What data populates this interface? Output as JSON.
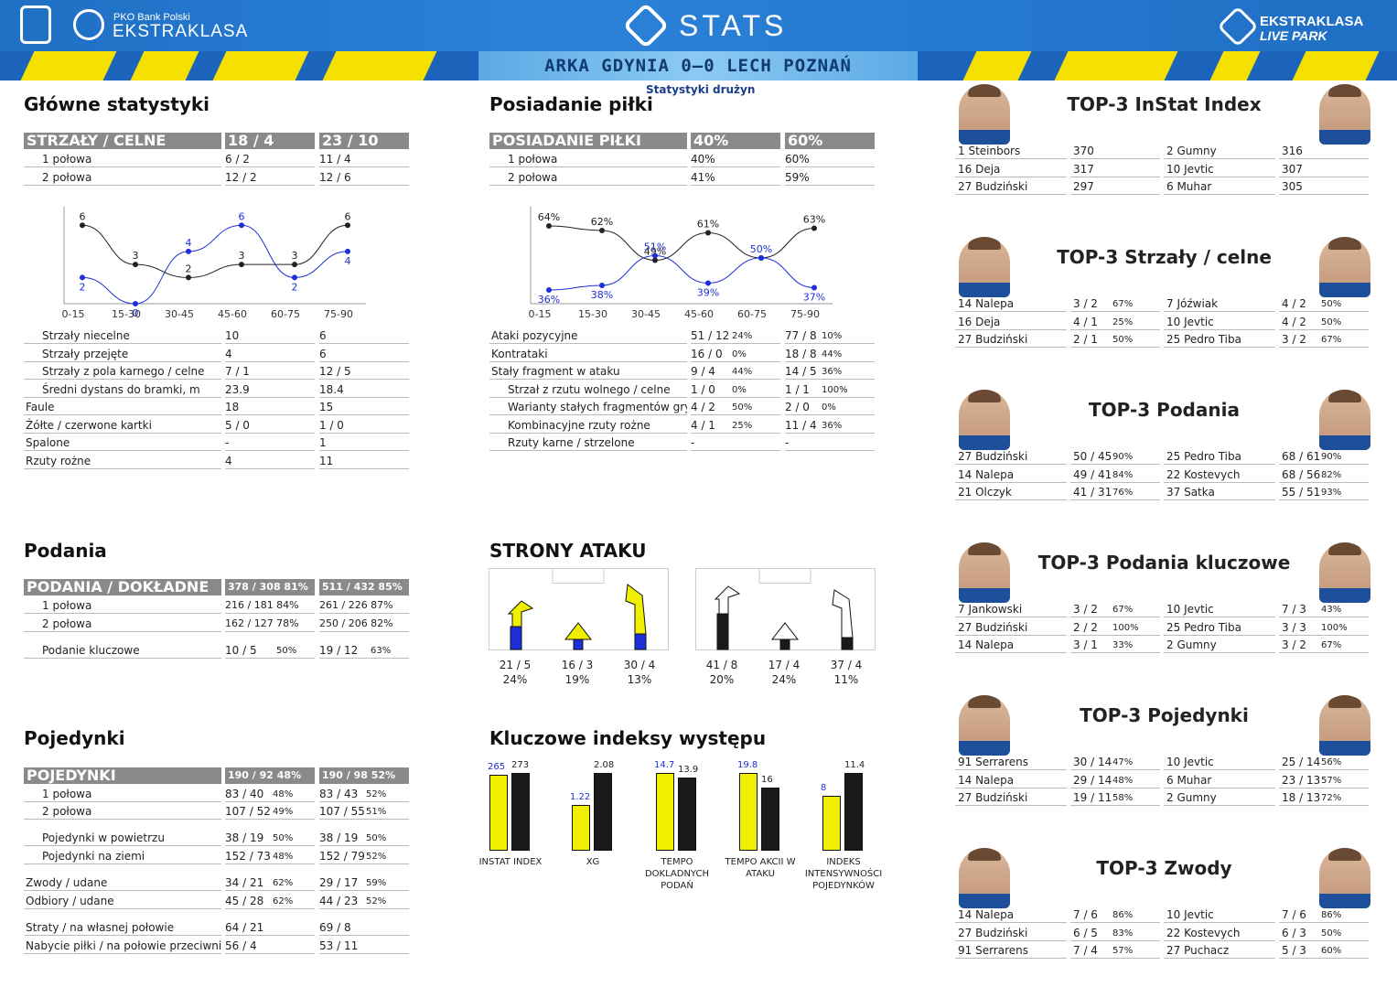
{
  "header": {
    "pko": "PKO Bank Polski",
    "ekstraklasa": "EKSTRAKLASA",
    "stats": "STATS",
    "livepark1": "EKSTRAKLASA",
    "livepark2": "LIVE PARK",
    "match": "ARKA GDYNIA 0–0  LECH POZNAŃ",
    "subtitle": "Statystyki drużyn"
  },
  "colors": {
    "yellow": "#f0ef00",
    "blue": "#1d2fd6",
    "black": "#1a1a1a",
    "header": "#1f6fc4"
  },
  "main": {
    "title": "Główne statystyki",
    "head": [
      "STRZAŁY / CELNE",
      "18 / 4",
      "23 / 10"
    ],
    "rows1": [
      [
        "1 połowa",
        "6 / 2",
        "11 / 4"
      ],
      [
        "2 połowa",
        "12 / 2",
        "12 / 6"
      ]
    ],
    "rows2": [
      [
        "Strzały niecelne",
        "10",
        "6"
      ],
      [
        "Strzały przejęte",
        "4",
        "6"
      ],
      [
        "Strzały z pola karnego / celne",
        "7 / 1",
        "12 / 5"
      ],
      [
        "Średni dystans do bramki, m",
        "23.9",
        "18.4"
      ],
      [
        "Faule",
        "18",
        "15"
      ],
      [
        "Żółte / czerwone kartki",
        "5 / 0",
        "1 / 0"
      ],
      [
        "Spalone",
        "-",
        "1"
      ],
      [
        "Rzuty rożne",
        "4",
        "11"
      ]
    ]
  },
  "chart_shots": {
    "type": "line",
    "categories": [
      "0-15",
      "15-30",
      "30-45",
      "45-60",
      "60-75",
      "75-90"
    ],
    "series": [
      {
        "values": [
          6,
          3,
          2,
          3,
          3,
          6
        ]
      },
      {
        "values": [
          2,
          0,
          4,
          6,
          2,
          4
        ]
      }
    ],
    "ylim": [
      0,
      7
    ]
  },
  "chart_shots_labels": {
    "s1": [
      "6",
      "3",
      "2",
      "3",
      "3",
      "6"
    ],
    "s2": [
      "2",
      "0",
      "4",
      "6",
      "2",
      "4"
    ]
  },
  "possession": {
    "title": "Posiadanie piłki",
    "head": [
      "POSIADANIE PIŁKI",
      "40%",
      "60%"
    ],
    "rows1": [
      [
        "1 połowa",
        "40%",
        "60%"
      ],
      [
        "2 połowa",
        "41%",
        "59%"
      ]
    ],
    "rows2": [
      [
        "Ataki pozycyjne",
        "51 / 12",
        "24%",
        "77 / 8",
        "10%"
      ],
      [
        "Kontrataki",
        "16 / 0",
        "0%",
        "18 / 8",
        "44%"
      ],
      [
        "Stały fragment w ataku",
        "9 / 4",
        "44%",
        "14 / 5",
        "36%"
      ],
      [
        "Strzał z rzutu wolnego / celne",
        "1 / 0",
        "0%",
        "1 / 1",
        "100%"
      ],
      [
        "Warianty stałych fragmentów gry",
        "4 / 2",
        "50%",
        "2 / 0",
        "0%"
      ],
      [
        "Kombinacyjne rzuty rożne",
        "4 / 1",
        "25%",
        "11 / 4",
        "36%"
      ],
      [
        "Rzuty karne /  strzelone",
        "-",
        "",
        "-",
        ""
      ]
    ]
  },
  "chart_poss": {
    "type": "line",
    "categories": [
      "0-15",
      "15-30",
      "30-45",
      "45-60",
      "60-75",
      "75-90"
    ],
    "series": [
      {
        "values": [
          64,
          62,
          49,
          61,
          50,
          63
        ]
      },
      {
        "values": [
          36,
          38,
          51,
          39,
          50,
          37
        ]
      }
    ],
    "ylim": [
      30,
      70
    ]
  },
  "chart_poss_labels": {
    "s1": [
      "64%",
      "62%",
      "49%",
      "61%",
      "",
      "63%"
    ],
    "s2": [
      "36%",
      "38%",
      "51%",
      "39%",
      "50%",
      "37%"
    ]
  },
  "passes": {
    "title": "Podania",
    "head": [
      "PODANIA / DOKŁADNE",
      "378 / 308 81%",
      "511 / 432 85%"
    ],
    "rows": [
      [
        "1 połowa",
        "216 / 181 84%",
        "261 / 226 87%"
      ],
      [
        "2 połowa",
        "162 / 127 78%",
        "250 / 206 82%"
      ]
    ],
    "key": [
      "Podanie kluczowe",
      "10 / 5",
      "50%",
      "19 / 12",
      "63%"
    ]
  },
  "attack": {
    "title": "STRONY ATAKU",
    "left": [
      [
        "21 / 5",
        "24%"
      ],
      [
        "16 / 3",
        "19%"
      ],
      [
        "30 / 4",
        "13%"
      ]
    ],
    "right": [
      [
        "41 / 8",
        "20%"
      ],
      [
        "17 / 4",
        "24%"
      ],
      [
        "37 / 4",
        "11%"
      ]
    ]
  },
  "duels": {
    "title": "Pojedynki",
    "head": [
      "POJEDYNKI",
      "190 / 92 48%",
      "190 / 98 52%"
    ],
    "rows": [
      [
        "1 połowa",
        "83 / 40",
        "48%",
        "83 / 43",
        "52%"
      ],
      [
        "2 połowa",
        "107 / 52",
        "49%",
        "107 / 55",
        "51%"
      ],
      [
        "Pojedynki w powietrzu",
        "38 / 19",
        "50%",
        "38 / 19",
        "50%"
      ],
      [
        "Pojedynki na ziemi",
        "152 / 73",
        "48%",
        "152 / 79",
        "52%"
      ],
      [
        "Zwody / udane",
        "34 / 21",
        "62%",
        "29 / 17",
        "59%"
      ],
      [
        "Odbiory / udane",
        "45 / 28",
        "62%",
        "44 / 23",
        "52%"
      ],
      [
        "Straty / na własnej połowie",
        "64 / 21",
        "",
        "69 / 8",
        ""
      ],
      [
        "Nabycie piłki / na połowie przeciwnika",
        "56 / 4",
        "",
        "53 / 11",
        ""
      ]
    ]
  },
  "kpi": {
    "title": "Kluczowe indeksy występu",
    "chart_data": {
      "type": "bar",
      "categories": [
        "INSTAT INDEX",
        "XG",
        "TEMPO DOKLADNYCH PODAŃ",
        "TEMPO AKCII W ATAKU",
        "INDEKS INTENSYWNOŚCI POJEDYNKÓW"
      ],
      "series": [
        {
          "values": [
            265,
            1.22,
            14.7,
            19.8,
            8
          ]
        },
        {
          "values": [
            273,
            2.08,
            13.9,
            16,
            11.4
          ]
        }
      ]
    },
    "labels": [
      "INSTAT INDEX",
      "XG",
      "TEMPO DOKLADNYCH PODAŃ",
      "TEMPO AKCII W ATAKU",
      "INDEKS INTENSYWNOŚCI POJEDYNKÓW"
    ],
    "a": [
      "265",
      "1.22",
      "14.7",
      "19.8",
      "8"
    ],
    "b": [
      "273",
      "2.08",
      "13.9",
      "16",
      "11.4"
    ]
  },
  "top": [
    {
      "title": "TOP-3 InStat Index",
      "l": [
        [
          "1  Steinbors",
          "370",
          ""
        ],
        [
          "16 Deja",
          "317",
          ""
        ],
        [
          "27 Budziński",
          "297",
          ""
        ]
      ],
      "r": [
        [
          "2  Gumny",
          "316",
          ""
        ],
        [
          "10 Jevtic",
          "307",
          ""
        ],
        [
          "6  Muhar",
          "305",
          ""
        ]
      ]
    },
    {
      "title": "TOP-3 Strzały / celne",
      "l": [
        [
          "14 Nalepa",
          "3 / 2",
          "67%"
        ],
        [
          "16 Deja",
          "4 / 1",
          "25%"
        ],
        [
          "27 Budziński",
          "2 / 1",
          "50%"
        ]
      ],
      "r": [
        [
          "7  Jóźwiak",
          "4 / 2",
          "50%"
        ],
        [
          "10 Jevtic",
          "4 / 2",
          "50%"
        ],
        [
          "25 Pedro Tiba",
          "3 / 2",
          "67%"
        ]
      ]
    },
    {
      "title": "TOP-3 Podania",
      "l": [
        [
          "27 Budziński",
          "50 / 45",
          "90%"
        ],
        [
          "14 Nalepa",
          "49 / 41",
          "84%"
        ],
        [
          "21 Olczyk",
          "41 / 31",
          "76%"
        ]
      ],
      "r": [
        [
          "25 Pedro Tiba",
          "68 / 61",
          "90%"
        ],
        [
          "22 Kostevych",
          "68 / 56",
          "82%"
        ],
        [
          "37 Satka",
          "55 / 51",
          "93%"
        ]
      ]
    },
    {
      "title": "TOP-3 Podania kluczowe",
      "l": [
        [
          "7  Jankowski",
          "3 / 2",
          "67%"
        ],
        [
          "27 Budziński",
          "2 / 2",
          "100%"
        ],
        [
          "14 Nalepa",
          "3 / 1",
          "33%"
        ]
      ],
      "r": [
        [
          "10 Jevtic",
          "7 / 3",
          "43%"
        ],
        [
          "25 Pedro Tiba",
          "3 / 3",
          "100%"
        ],
        [
          "2  Gumny",
          "3 / 2",
          "67%"
        ]
      ]
    },
    {
      "title": "TOP-3 Pojedynki",
      "l": [
        [
          "91 Serrarens",
          "30 / 14",
          "47%"
        ],
        [
          "14 Nalepa",
          "29 / 14",
          "48%"
        ],
        [
          "27 Budziński",
          "19 / 11",
          "58%"
        ]
      ],
      "r": [
        [
          "10 Jevtic",
          "25 / 14",
          "56%"
        ],
        [
          "6  Muhar",
          "23 / 13",
          "57%"
        ],
        [
          "2  Gumny",
          "18 / 13",
          "72%"
        ]
      ]
    },
    {
      "title": "TOP-3 Zwody",
      "l": [
        [
          "14 Nalepa",
          "7 / 6",
          "86%"
        ],
        [
          "27 Budziński",
          "6 / 5",
          "83%"
        ],
        [
          "91 Serrarens",
          "7 / 4",
          "57%"
        ]
      ],
      "r": [
        [
          "10 Jevtic",
          "7 / 6",
          "86%"
        ],
        [
          "22 Kostevych",
          "6 / 3",
          "50%"
        ],
        [
          "27 Puchacz",
          "5 / 3",
          "60%"
        ]
      ]
    }
  ]
}
